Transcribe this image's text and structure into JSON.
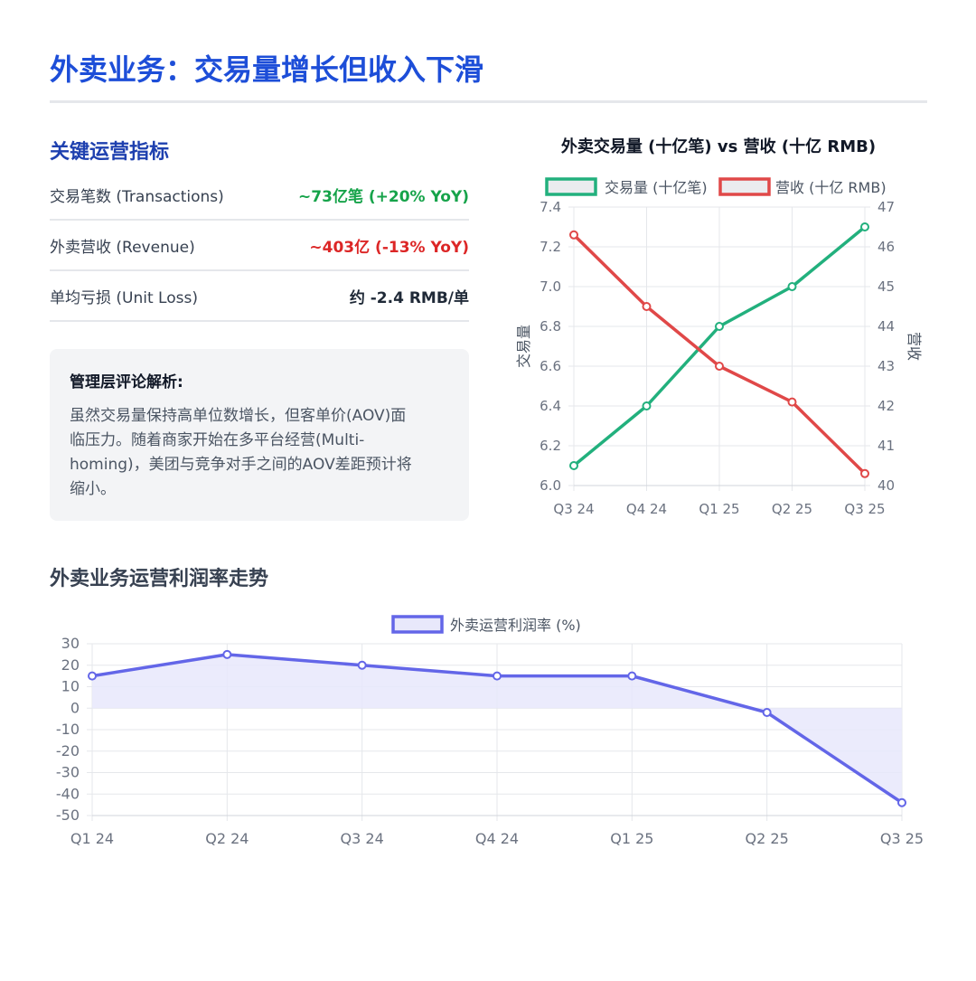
{
  "header": {
    "title": "外卖业务：交易量增长但收入下滑"
  },
  "metrics": {
    "heading": "关键运营指标",
    "rows": [
      {
        "label": "交易笔数 (Transactions)",
        "value": "~73亿笔 (+20% YoY)",
        "color": "#16a34a"
      },
      {
        "label": "外卖营收 (Revenue)",
        "value": "~403亿 (-13% YoY)",
        "color": "#dc2626"
      },
      {
        "label": "单均亏损 (Unit Loss)",
        "value": "约 -2.4 RMB/单",
        "color": "#1f2937"
      }
    ]
  },
  "commentary": {
    "title": "管理层评论解析:",
    "lines": [
      "虽然交易量保持高单位数增长，但客单价(AOV)面",
      "临压力。随着商家开始在多平台经营(Multi-",
      "homing)，美团与竞争对手之间的AOV差距预计将",
      "缩小。"
    ]
  },
  "section2": {
    "heading": "外卖业务运营利润率走势"
  },
  "chart_data": [
    {
      "type": "line",
      "title": "外卖交易量 (十亿笔) vs 营收 (十亿 RMB)",
      "categories": [
        "Q3 24",
        "Q4 24",
        "Q1 25",
        "Q2 25",
        "Q3 25"
      ],
      "series": [
        {
          "name": "交易量 (十亿笔)",
          "axis": "left",
          "color": "#22b07d",
          "values": [
            6.1,
            6.4,
            6.8,
            7.0,
            7.3
          ]
        },
        {
          "name": "营收 (十亿 RMB)",
          "axis": "right",
          "color": "#e04848",
          "values": [
            46.3,
            44.5,
            43.0,
            42.1,
            40.3
          ]
        }
      ],
      "ylabel": "交易量",
      "y2label": "营收",
      "ylim": [
        6.0,
        7.4
      ],
      "yticks": [
        "6.0",
        "6.2",
        "6.4",
        "6.6",
        "6.8",
        "7.0",
        "7.2",
        "7.4"
      ],
      "y2lim": [
        40,
        47
      ],
      "y2ticks": [
        "40",
        "41",
        "42",
        "43",
        "44",
        "45",
        "46",
        "47"
      ],
      "grid": true,
      "legend": "top"
    },
    {
      "type": "area",
      "title": "",
      "categories": [
        "Q1 24",
        "Q2 24",
        "Q3 24",
        "Q4 24",
        "Q1 25",
        "Q2 25",
        "Q3 25"
      ],
      "series": [
        {
          "name": "外卖运营利润率 (%)",
          "color": "#6366e8",
          "fill": "#e8e8fb",
          "values": [
            15,
            25,
            20,
            15,
            15,
            -2,
            -44
          ]
        }
      ],
      "ylim": [
        -50,
        30
      ],
      "yticks": [
        "-50",
        "-40",
        "-30",
        "-20",
        "-10",
        "0",
        "10",
        "20",
        "30"
      ],
      "grid": true,
      "legend": "top"
    }
  ]
}
